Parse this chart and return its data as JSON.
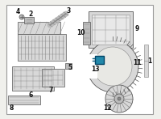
{
  "bg_color": "#f0f0ec",
  "border_color": "#999999",
  "line_color": "#555555",
  "dark_line": "#333333",
  "highlight_color": "#2288aa",
  "label_color": "#111111",
  "white": "#ffffff",
  "gray_light": "#d8d8d8",
  "gray_mid": "#bbbbbb",
  "gray_dark": "#888888",
  "label_fontsize": 5.5,
  "figw": 2.0,
  "figh": 1.47,
  "dpi": 100
}
